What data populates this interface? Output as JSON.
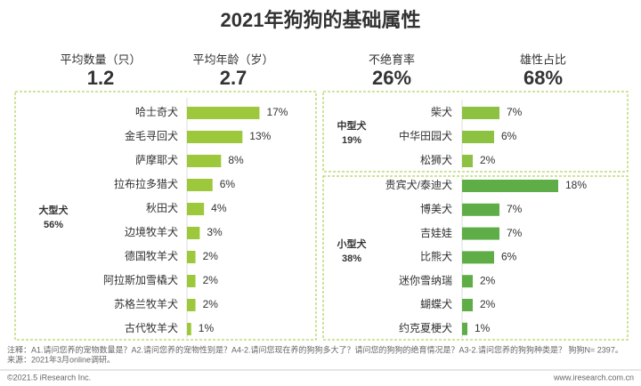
{
  "title": "2021年狗狗的基础属性",
  "stats": [
    {
      "label": "平均数量（只）",
      "value": "1.2"
    },
    {
      "label": "平均年龄（岁）",
      "value": "2.7"
    },
    {
      "label": "不绝育率",
      "value": "26%"
    },
    {
      "label": "雄性占比",
      "value": "68%"
    }
  ],
  "chart_data": [
    {
      "type": "bar",
      "orientation": "horizontal",
      "group": "大型犬",
      "share": "56%",
      "categories": [
        "哈士奇犬",
        "金毛寻回犬",
        "萨摩耶犬",
        "拉布拉多猎犬",
        "秋田犬",
        "边境牧羊犬",
        "德国牧羊犬",
        "阿拉斯加雪橇犬",
        "苏格兰牧羊犬",
        "古代牧羊犬"
      ],
      "values": [
        17,
        13,
        8,
        6,
        4,
        3,
        2,
        2,
        2,
        1
      ],
      "value_labels": [
        "17%",
        "13%",
        "8%",
        "6%",
        "4%",
        "3%",
        "2%",
        "2%",
        "2%",
        "1%"
      ],
      "color": "#9dc83b",
      "xlim": [
        0,
        24
      ]
    },
    {
      "type": "bar",
      "orientation": "horizontal",
      "group": "中型犬",
      "share": "19%",
      "categories": [
        "柴犬",
        "中华田园犬",
        "松狮犬"
      ],
      "values": [
        7,
        6,
        2
      ],
      "value_labels": [
        "7%",
        "6%",
        "2%"
      ],
      "color": "#8cc141",
      "xlim": [
        0,
        20
      ]
    },
    {
      "type": "bar",
      "orientation": "horizontal",
      "group": "小型犬",
      "share": "38%",
      "categories": [
        "贵宾犬/泰迪犬",
        "博美犬",
        "吉娃娃",
        "比熊犬",
        "迷你雪纳瑞",
        "蝴蝶犬",
        "约克夏梗犬"
      ],
      "values": [
        18,
        7,
        7,
        6,
        2,
        2,
        1
      ],
      "value_labels": [
        "18%",
        "7%",
        "7%",
        "6%",
        "2%",
        "2%",
        "1%"
      ],
      "color": "#5ead47",
      "xlim": [
        0,
        20
      ]
    }
  ],
  "notes": [
    "注释：A1.请问您养的宠物数量是？A2.请问您养的宠物性别是？A4-2.请问您现在养的狗狗多大了？请问您的狗狗的绝育情况是？A3-2.请问您养的狗狗种类是？ 狗狗N= 2397。",
    "来源：2021年3月online调研。"
  ],
  "copyright": "©2021.5 iResearch Inc.",
  "website": "www.iresearch.com.cn"
}
